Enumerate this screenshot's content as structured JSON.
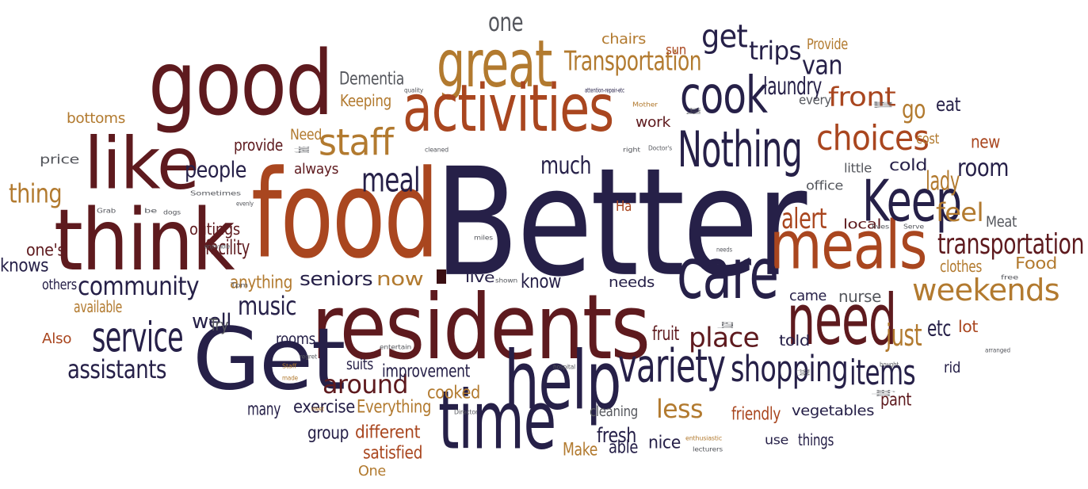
{
  "colors": {
    "navy": "#262048",
    "maroon": "#5e1a1e",
    "rust": "#a9461f",
    "gold": "#b27a2f",
    "gray": "#55575d"
  },
  "words": [
    {
      "t": "Better",
      "c": "navy"
    },
    {
      "t": "food",
      "c": "rust"
    },
    {
      "t": "residents",
      "c": "maroon"
    },
    {
      "t": "good",
      "c": "maroon"
    },
    {
      "t": "Get",
      "c": "navy"
    },
    {
      "t": "think",
      "c": "maroon"
    },
    {
      "t": "like",
      "c": "maroon"
    },
    {
      "t": "help",
      "c": "navy"
    },
    {
      "t": "time",
      "c": "navy"
    },
    {
      "t": "great",
      "c": "gold"
    },
    {
      "t": "activities",
      "c": "rust"
    },
    {
      "t": "meals",
      "c": "rust"
    },
    {
      "t": "need",
      "c": "maroon"
    },
    {
      "t": "care",
      "c": "navy"
    },
    {
      "t": "Keep",
      "c": "navy"
    },
    {
      "t": "Nothing",
      "c": "navy"
    },
    {
      "t": "cook",
      "c": "navy"
    },
    {
      "t": "variety",
      "c": "navy"
    },
    {
      "t": "shopping",
      "c": "navy"
    },
    {
      "t": "items",
      "c": "navy"
    },
    {
      "t": "choices",
      "c": "rust"
    },
    {
      "t": "weekends",
      "c": "gold"
    },
    {
      "t": "transportation",
      "c": "maroon"
    },
    {
      "t": "staff",
      "c": "gold"
    },
    {
      "t": "meal",
      "c": "navy"
    },
    {
      "t": "service",
      "c": "navy"
    },
    {
      "t": "community",
      "c": "navy"
    },
    {
      "t": "music",
      "c": "navy"
    },
    {
      "t": "assistants",
      "c": "navy"
    },
    {
      "t": "people",
      "c": "navy"
    },
    {
      "t": "around",
      "c": "maroon"
    },
    {
      "t": "seniors",
      "c": "navy"
    },
    {
      "t": "now",
      "c": "gold"
    },
    {
      "t": "know",
      "c": "navy"
    },
    {
      "t": "place",
      "c": "maroon"
    },
    {
      "t": "get",
      "c": "navy"
    },
    {
      "t": "one",
      "c": "gray"
    },
    {
      "t": "Transportation",
      "c": "gold"
    },
    {
      "t": "trips",
      "c": "navy"
    },
    {
      "t": "laundry",
      "c": "navy"
    },
    {
      "t": "front",
      "c": "rust"
    },
    {
      "t": "alert",
      "c": "rust"
    },
    {
      "t": "feel",
      "c": "gold"
    },
    {
      "t": "room",
      "c": "navy"
    },
    {
      "t": "lady",
      "c": "gold"
    },
    {
      "t": "van",
      "c": "navy"
    },
    {
      "t": "much",
      "c": "navy"
    },
    {
      "t": "just",
      "c": "gold"
    },
    {
      "t": "etc",
      "c": "navy"
    },
    {
      "t": "less",
      "c": "gold"
    },
    {
      "t": "thing",
      "c": "gold"
    },
    {
      "t": "well",
      "c": "navy"
    },
    {
      "t": "go",
      "c": "gold"
    },
    {
      "t": "Dementia",
      "c": "gray"
    },
    {
      "t": "chairs",
      "c": "gold"
    },
    {
      "t": "sun",
      "c": "rust"
    },
    {
      "t": "Provide",
      "c": "gold"
    },
    {
      "t": "Keeping",
      "c": "gold"
    },
    {
      "t": "bottoms",
      "c": "gold"
    },
    {
      "t": "eat",
      "c": "navy"
    },
    {
      "t": "every",
      "c": "gray"
    },
    {
      "t": "cost",
      "c": "gold"
    },
    {
      "t": "new",
      "c": "rust"
    },
    {
      "t": "cold",
      "c": "navy"
    },
    {
      "t": "little",
      "c": "gray"
    },
    {
      "t": "office",
      "c": "gray"
    },
    {
      "t": "local",
      "c": "maroon"
    },
    {
      "t": "Meat",
      "c": "gray"
    },
    {
      "t": "Food",
      "c": "gold"
    },
    {
      "t": "clothes",
      "c": "gold"
    },
    {
      "t": "Ha",
      "c": "rust"
    },
    {
      "t": "price",
      "c": "gray"
    },
    {
      "t": "provide",
      "c": "maroon"
    },
    {
      "t": "Need",
      "c": "gold"
    },
    {
      "t": "work",
      "c": "maroon"
    },
    {
      "t": "always",
      "c": "maroon"
    },
    {
      "t": "outings",
      "c": "maroon"
    },
    {
      "t": "facility",
      "c": "maroon"
    },
    {
      "t": "one's",
      "c": "maroon"
    },
    {
      "t": "knows",
      "c": "navy"
    },
    {
      "t": "others",
      "c": "navy"
    },
    {
      "t": "anything",
      "c": "gold"
    },
    {
      "t": "available",
      "c": "gold"
    },
    {
      "t": "Also",
      "c": "rust"
    },
    {
      "t": "Try",
      "c": "gray"
    },
    {
      "t": "rooms",
      "c": "navy"
    },
    {
      "t": "suits",
      "c": "navy"
    },
    {
      "t": "improvement",
      "c": "navy"
    },
    {
      "t": "cooked",
      "c": "gold"
    },
    {
      "t": "many",
      "c": "navy"
    },
    {
      "t": "exercise",
      "c": "navy"
    },
    {
      "t": "Everything",
      "c": "gold"
    },
    {
      "t": "group",
      "c": "navy"
    },
    {
      "t": "different",
      "c": "rust"
    },
    {
      "t": "satisfied",
      "c": "rust"
    },
    {
      "t": "One",
      "c": "gold"
    },
    {
      "t": "cleaning",
      "c": "gray"
    },
    {
      "t": "friendly",
      "c": "rust"
    },
    {
      "t": "fresh",
      "c": "navy"
    },
    {
      "t": "Make",
      "c": "gold"
    },
    {
      "t": "able",
      "c": "navy"
    },
    {
      "t": "nice",
      "c": "navy"
    },
    {
      "t": "vegetables",
      "c": "navy"
    },
    {
      "t": "use",
      "c": "navy"
    },
    {
      "t": "things",
      "c": "navy"
    },
    {
      "t": "pant",
      "c": "maroon"
    },
    {
      "t": "rid",
      "c": "navy"
    },
    {
      "t": "told",
      "c": "navy"
    },
    {
      "t": "lot",
      "c": "rust"
    },
    {
      "t": "came",
      "c": "navy"
    },
    {
      "t": "nurse",
      "c": "gray"
    },
    {
      "t": "needs",
      "c": "navy"
    },
    {
      "t": "live",
      "c": "navy"
    },
    {
      "t": "fruit",
      "c": "maroon"
    },
    {
      "t": "quality",
      "c": "gray"
    },
    {
      "t": "attention-repair-etc",
      "c": "navy"
    },
    {
      "t": "Mother",
      "c": "gold"
    },
    {
      "t": "Room",
      "c": "gray"
    },
    {
      "t": "number",
      "c": "gray"
    },
    {
      "t": "thanks",
      "c": "gray"
    },
    {
      "t": "cleaned",
      "c": "gray"
    },
    {
      "t": "right",
      "c": "gray"
    },
    {
      "t": "Doctor's",
      "c": "gray"
    },
    {
      "t": "Sometimes",
      "c": "gray"
    },
    {
      "t": "evenly",
      "c": "gray"
    },
    {
      "t": "Grab",
      "c": "gray"
    },
    {
      "t": "be",
      "c": "gray"
    },
    {
      "t": "dogs",
      "c": "gray"
    },
    {
      "t": "enjoyable",
      "c": "gray"
    },
    {
      "t": "miles",
      "c": "gray"
    },
    {
      "t": "lives",
      "c": "gray"
    },
    {
      "t": "Serve",
      "c": "gray"
    },
    {
      "t": "needs",
      "c": "gray"
    },
    {
      "t": "free",
      "c": "gray"
    },
    {
      "t": "Tpm",
      "c": "gray"
    },
    {
      "t": "shown",
      "c": "gray"
    },
    {
      "t": "buzzer",
      "c": "gray"
    },
    {
      "t": "bought",
      "c": "gray"
    },
    {
      "t": "regret",
      "c": "gray"
    },
    {
      "t": "arranged",
      "c": "gray"
    },
    {
      "t": "entertain",
      "c": "gray"
    },
    {
      "t": "hospital",
      "c": "gray"
    },
    {
      "t": "Staff",
      "c": "gold"
    },
    {
      "t": "made",
      "c": "gold"
    },
    {
      "t": "Director",
      "c": "gray"
    },
    {
      "t": "levels",
      "c": "gray"
    },
    {
      "t": "college",
      "c": "gray"
    },
    {
      "t": "meet",
      "c": "gold"
    },
    {
      "t": "enthusiastic",
      "c": "gold"
    },
    {
      "t": "lecturers",
      "c": "gray"
    }
  ]
}
